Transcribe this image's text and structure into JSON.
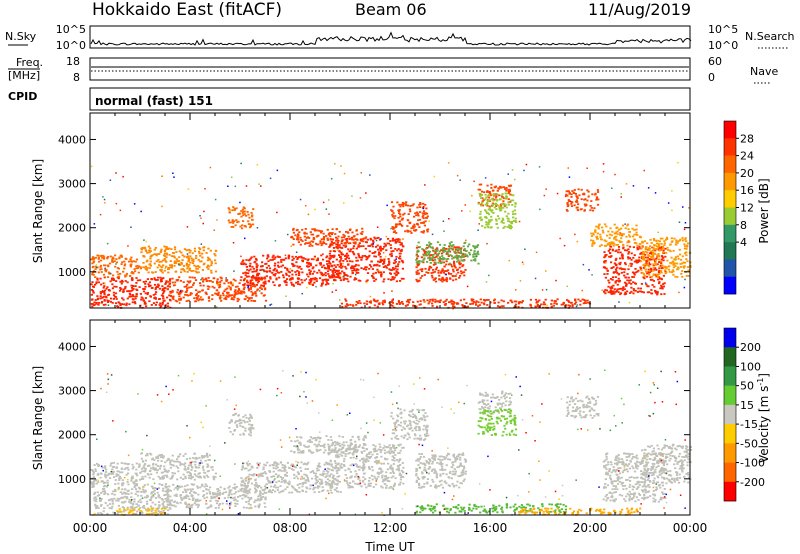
{
  "header": {
    "station": "Hokkaido East (fitACF)",
    "beam": "Beam 06",
    "date": "11/Aug/2019"
  },
  "top_panels": {
    "nsky": {
      "label": "N.Sky",
      "right_label": "N.Search",
      "ticks_left": [
        "10^5",
        "10^0"
      ],
      "ticks_right": [
        "10^5",
        "10^0"
      ]
    },
    "freq": {
      "label_line1": "Freq.",
      "label_line2": "[MHz]",
      "right_label": "Nave",
      "ticks_left": [
        "18",
        "8"
      ],
      "ticks_right": [
        "60",
        "0"
      ]
    },
    "cpid": {
      "label": "CPID",
      "value": "normal (fast) 151"
    }
  },
  "chart_data": [
    {
      "type": "heatmap",
      "name": "power",
      "ylabel": "Slant Range [km]",
      "ylim": [
        180,
        4600
      ],
      "yticks": [
        "4000",
        "3000",
        "2000",
        "1000"
      ],
      "xticks": [
        "00:00",
        "04:00",
        "08:00",
        "12:00",
        "16:00",
        "20:00",
        "00:00"
      ],
      "colorbar": {
        "label": "Power [dB]",
        "ticks": [
          "28",
          "24",
          "20",
          "16",
          "12",
          "8",
          "4"
        ],
        "colors": [
          "#ff0000",
          "#ff3300",
          "#ff6600",
          "#ff9900",
          "#ffcc00",
          "#99cc33",
          "#339966",
          "#227755",
          "#2255aa",
          "#0000ff"
        ]
      },
      "blobs": [
        {
          "t": [
            0.0,
            3.2
          ],
          "r": [
            200,
            900
          ],
          "color": "#ff2200"
        },
        {
          "t": [
            0.0,
            2.0
          ],
          "r": [
            900,
            1400
          ],
          "color": "#ff6600"
        },
        {
          "t": [
            3.0,
            7.0
          ],
          "r": [
            350,
            900
          ],
          "color": "#ff4400"
        },
        {
          "t": [
            2.0,
            5.0
          ],
          "r": [
            1000,
            1600
          ],
          "color": "#ff8800"
        },
        {
          "t": [
            6.0,
            10.0
          ],
          "r": [
            700,
            1400
          ],
          "color": "#ff2200"
        },
        {
          "t": [
            9.5,
            12.5
          ],
          "r": [
            800,
            1800
          ],
          "color": "#ff2200"
        },
        {
          "t": [
            8.0,
            11.0
          ],
          "r": [
            1600,
            2000
          ],
          "color": "#ff4400"
        },
        {
          "t": [
            12.0,
            13.5
          ],
          "r": [
            1900,
            2600
          ],
          "color": "#ff4400"
        },
        {
          "t": [
            13.0,
            15.0
          ],
          "r": [
            800,
            1600
          ],
          "color": "#ff3300"
        },
        {
          "t": [
            5.5,
            6.5
          ],
          "r": [
            2000,
            2500
          ],
          "color": "#ff6600"
        },
        {
          "t": [
            15.5,
            16.8
          ],
          "r": [
            2500,
            3000
          ],
          "color": "#ff4400"
        },
        {
          "t": [
            19.0,
            20.3
          ],
          "r": [
            2400,
            2900
          ],
          "color": "#ff4400"
        },
        {
          "t": [
            20.5,
            23.0
          ],
          "r": [
            500,
            1600
          ],
          "color": "#ff2200"
        },
        {
          "t": [
            22.0,
            24.0
          ],
          "r": [
            900,
            1800
          ],
          "color": "#ff9900"
        },
        {
          "t": [
            10.0,
            20.0
          ],
          "r": [
            200,
            400
          ],
          "color": "#ff3300"
        },
        {
          "t": [
            13.0,
            15.5
          ],
          "r": [
            1200,
            1700
          ],
          "color": "#66aa44"
        },
        {
          "t": [
            15.5,
            17.0
          ],
          "r": [
            2000,
            2800
          ],
          "color": "#99cc33"
        },
        {
          "t": [
            20.0,
            22.0
          ],
          "r": [
            1600,
            2100
          ],
          "color": "#ff9900"
        }
      ]
    },
    {
      "type": "heatmap",
      "name": "velocity",
      "ylabel": "Slant Range [km]",
      "ylim": [
        180,
        4600
      ],
      "yticks": [
        "4000",
        "3000",
        "2000",
        "1000"
      ],
      "xticks": [
        "00:00",
        "04:00",
        "08:00",
        "12:00",
        "16:00",
        "20:00",
        "00:00"
      ],
      "xlabel": "Time UT",
      "colorbar": {
        "label": "Velocity [m s",
        "label_sup": "-1",
        "label_end": "]",
        "ticks": [
          "200",
          "100",
          "50",
          "15",
          "-15",
          "-50",
          "-100",
          "-200"
        ],
        "colors": [
          "#0000ee",
          "#226622",
          "#339944",
          "#66cc33",
          "#c8c8c0",
          "#ffcc00",
          "#ff9900",
          "#ff6600",
          "#ff0000"
        ]
      },
      "blobs": [
        {
          "t": [
            0.0,
            3.2
          ],
          "r": [
            200,
            900
          ],
          "color": "#c0c0b8"
        },
        {
          "t": [
            0.0,
            2.0
          ],
          "r": [
            900,
            1400
          ],
          "color": "#c0c0b8"
        },
        {
          "t": [
            3.0,
            7.0
          ],
          "r": [
            350,
            900
          ],
          "color": "#c0c0b8"
        },
        {
          "t": [
            2.0,
            5.0
          ],
          "r": [
            1000,
            1600
          ],
          "color": "#c0c0b8"
        },
        {
          "t": [
            6.0,
            10.0
          ],
          "r": [
            700,
            1400
          ],
          "color": "#c0c0b8"
        },
        {
          "t": [
            9.5,
            12.5
          ],
          "r": [
            800,
            1800
          ],
          "color": "#c0c0b8"
        },
        {
          "t": [
            8.0,
            11.0
          ],
          "r": [
            1600,
            2000
          ],
          "color": "#c0c0b8"
        },
        {
          "t": [
            12.0,
            13.5
          ],
          "r": [
            1900,
            2600
          ],
          "color": "#c0c0b8"
        },
        {
          "t": [
            13.0,
            15.0
          ],
          "r": [
            800,
            1600
          ],
          "color": "#c0c0b8"
        },
        {
          "t": [
            5.5,
            6.5
          ],
          "r": [
            2000,
            2500
          ],
          "color": "#c0c0b8"
        },
        {
          "t": [
            15.5,
            16.8
          ],
          "r": [
            2500,
            3000
          ],
          "color": "#c0c0b8"
        },
        {
          "t": [
            19.0,
            20.3
          ],
          "r": [
            2400,
            2900
          ],
          "color": "#c0c0b8"
        },
        {
          "t": [
            20.5,
            23.0
          ],
          "r": [
            500,
            1600
          ],
          "color": "#c0c0b8"
        },
        {
          "t": [
            22.0,
            24.0
          ],
          "r": [
            900,
            1800
          ],
          "color": "#c0c0b8"
        },
        {
          "t": [
            13.0,
            19.0
          ],
          "r": [
            250,
            450
          ],
          "color": "#55bb33"
        },
        {
          "t": [
            17.0,
            22.0
          ],
          "r": [
            200,
            350
          ],
          "color": "#ffaa00"
        },
        {
          "t": [
            1.0,
            3.0
          ],
          "r": [
            200,
            350
          ],
          "color": "#ffbb00"
        },
        {
          "t": [
            15.5,
            17.0
          ],
          "r": [
            2000,
            2600
          ],
          "color": "#77cc33"
        }
      ]
    }
  ]
}
